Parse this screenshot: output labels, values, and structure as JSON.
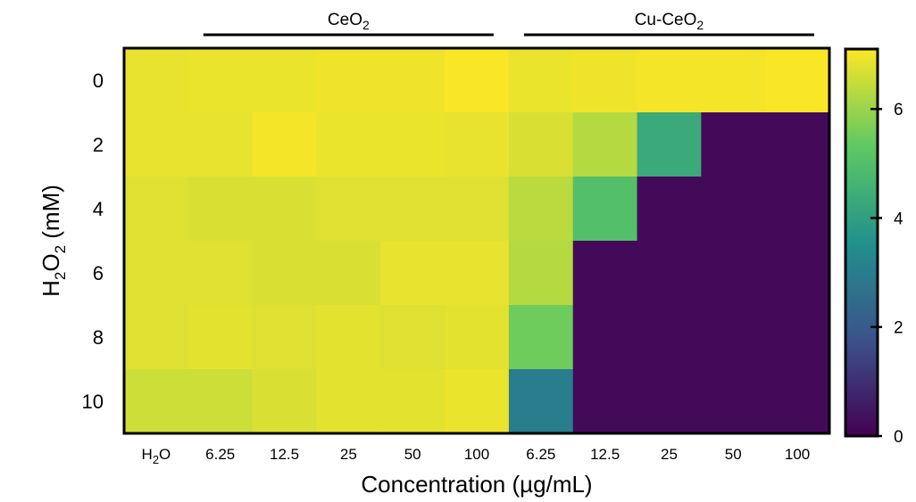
{
  "chart_data": {
    "type": "heatmap",
    "title": "",
    "xlabel": "Concentration (µg/mL)",
    "ylabel": {
      "main": "H",
      "sub1": "2",
      "mid": "O",
      "sub2": "2",
      "unit": " (mM)"
    },
    "group_labels": [
      {
        "main": "CeO",
        "sub": "2",
        "start": 1,
        "end": 5
      },
      {
        "main": "Cu-CeO",
        "sub": "2",
        "start": 6,
        "end": 10
      }
    ],
    "x_categories": [
      {
        "main": "H",
        "sub": "2",
        "tail": "O"
      },
      {
        "main": "6.25"
      },
      {
        "main": "12.5"
      },
      {
        "main": "25"
      },
      {
        "main": "50"
      },
      {
        "main": "100"
      },
      {
        "main": "6.25"
      },
      {
        "main": "12.5"
      },
      {
        "main": "25"
      },
      {
        "main": "50"
      },
      {
        "main": "100"
      }
    ],
    "y_categories": [
      "0",
      "2",
      "4",
      "6",
      "8",
      "10"
    ],
    "values": [
      [
        6.85,
        6.9,
        6.9,
        6.95,
        6.95,
        7.05,
        6.9,
        6.95,
        7.0,
        7.0,
        7.05
      ],
      [
        6.85,
        6.85,
        7.0,
        6.9,
        6.9,
        6.85,
        6.7,
        6.3,
        4.3,
        0.2,
        0.2
      ],
      [
        6.75,
        6.7,
        6.7,
        6.75,
        6.75,
        6.75,
        6.35,
        5.0,
        0.2,
        0.2,
        0.2
      ],
      [
        6.75,
        6.75,
        6.7,
        6.7,
        6.85,
        6.85,
        6.3,
        0.2,
        0.2,
        0.2,
        0.2
      ],
      [
        6.75,
        6.8,
        6.75,
        6.8,
        6.75,
        6.8,
        5.5,
        0.2,
        0.2,
        0.2,
        0.2
      ],
      [
        6.55,
        6.55,
        6.7,
        6.8,
        6.8,
        6.9,
        3.0,
        0.2,
        0.2,
        0.2,
        0.2
      ]
    ],
    "colorbar": {
      "min": 0,
      "max": 7.1,
      "ticks": [
        0,
        2,
        4,
        6
      ],
      "colormap": "viridis"
    },
    "grid": false
  }
}
